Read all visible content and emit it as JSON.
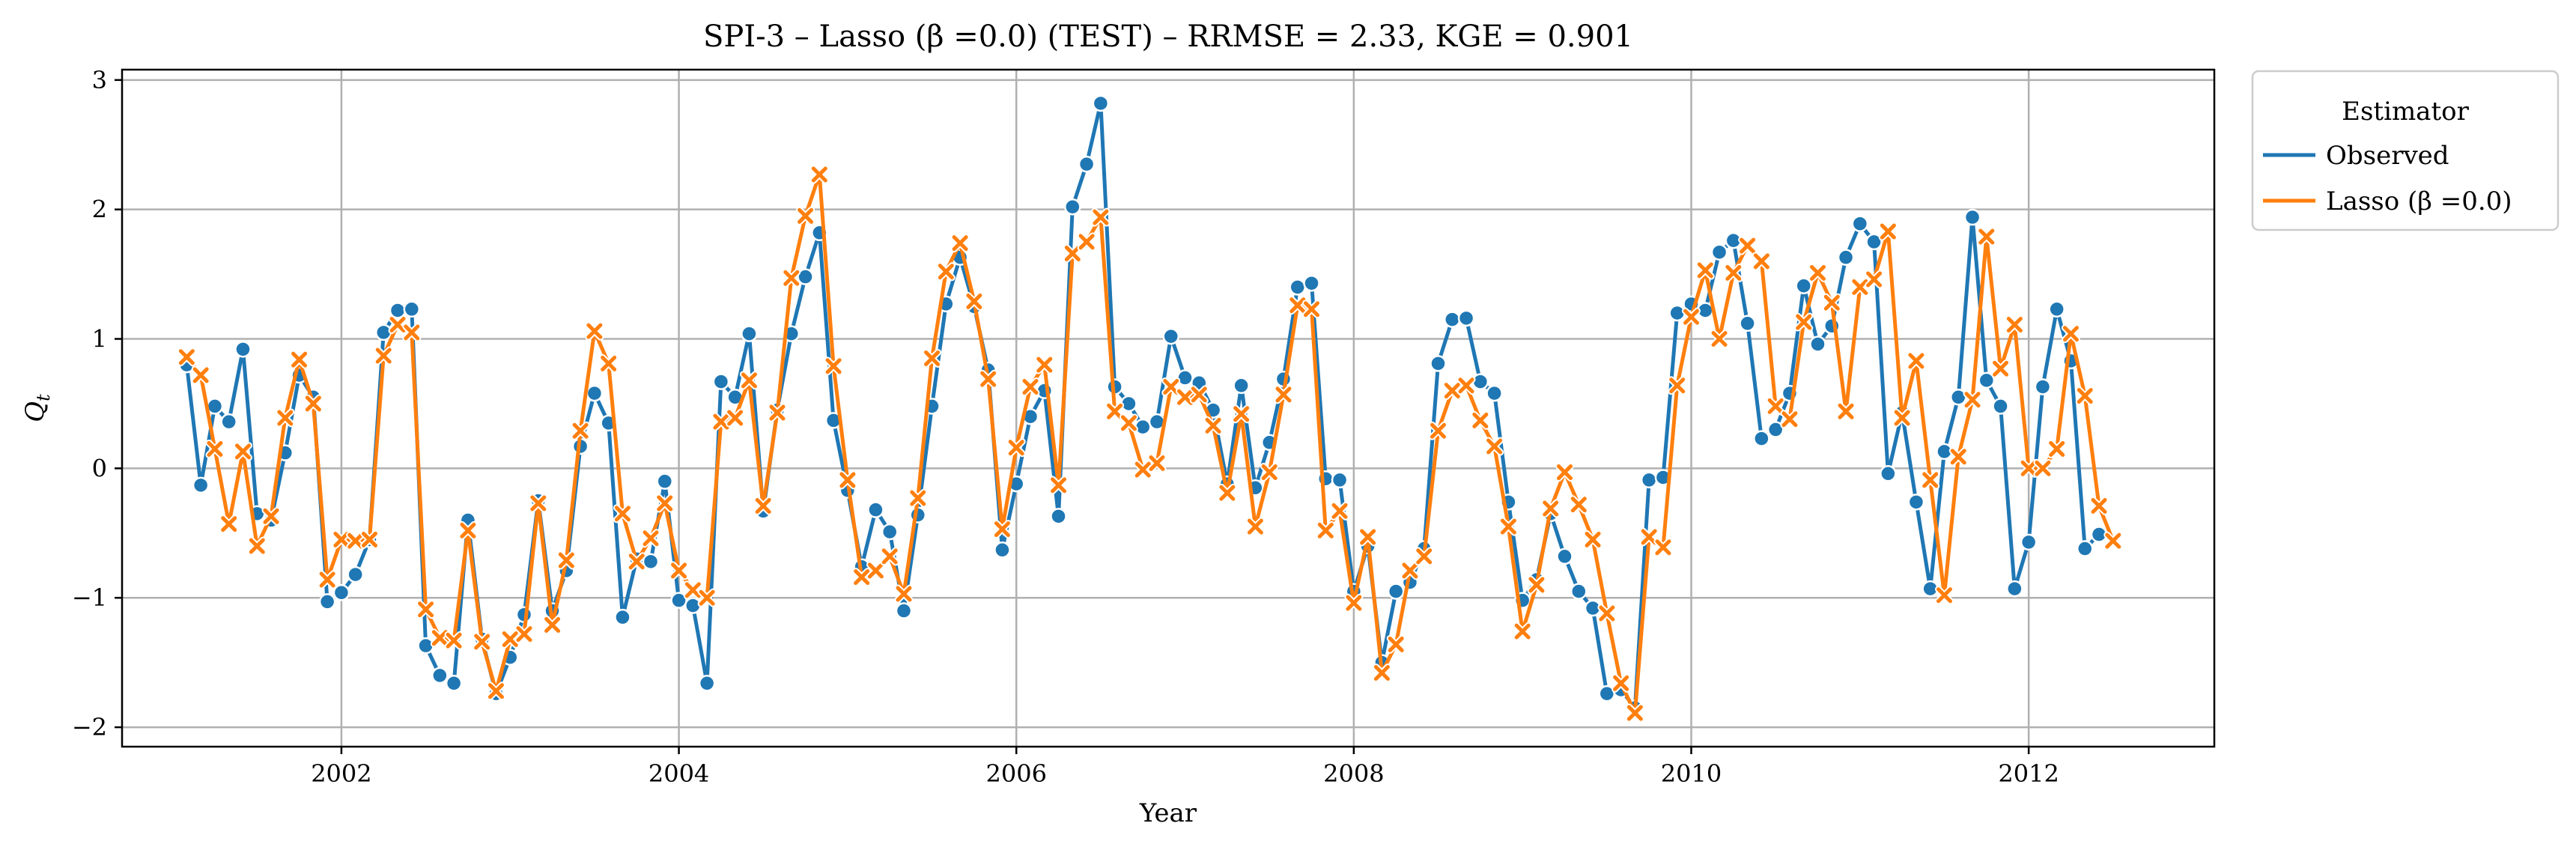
{
  "chart_data": {
    "type": "line",
    "title": "SPI-3 – Lasso (β =0.0) (TEST) – RRMSE = 2.33, KGE = 0.901",
    "xlabel": "Year",
    "ylabel": "Q_t",
    "xlim": [
      2000.7,
      2013.1
    ],
    "ylim": [
      -2.15,
      3.08
    ],
    "x_ticks": [
      2002,
      2004,
      2006,
      2008,
      2010,
      2012
    ],
    "x_tick_labels": [
      "2002",
      "2004",
      "2006",
      "2008",
      "2010",
      "2012"
    ],
    "y_ticks": [
      -2,
      -1,
      0,
      1,
      2,
      3
    ],
    "y_tick_labels": [
      "−2",
      "−1",
      "0",
      "1",
      "2",
      "3"
    ],
    "grid": true,
    "legend": {
      "title": "Estimator",
      "placement": "outside-top-right"
    },
    "x_start": 2001.0833,
    "x_step": 0.083333,
    "series": [
      {
        "name": "Observed",
        "color": "#1f77b4",
        "marker": "circle",
        "values": [
          0.8,
          -0.13,
          0.48,
          0.36,
          0.92,
          -0.35,
          -0.4,
          0.12,
          0.72,
          0.55,
          -1.03,
          -0.96,
          -0.82,
          -0.55,
          1.05,
          1.22,
          1.23,
          -1.37,
          -1.6,
          -1.66,
          -0.4,
          -1.32,
          -1.74,
          -1.46,
          -1.13,
          -0.25,
          -1.1,
          -0.79,
          0.17,
          0.58,
          0.35,
          -1.15,
          -0.7,
          -0.72,
          -0.1,
          -1.02,
          -1.06,
          -1.66,
          0.67,
          0.55,
          1.04,
          -0.33,
          0.45,
          1.04,
          1.48,
          1.82,
          0.37,
          -0.17,
          -0.76,
          -0.32,
          -0.49,
          -1.1,
          -0.36,
          0.48,
          1.27,
          1.63,
          1.25,
          0.76,
          -0.63,
          -0.12,
          0.4,
          0.6,
          -0.37,
          2.02,
          2.35,
          2.82,
          0.63,
          0.5,
          0.32,
          0.36,
          1.02,
          0.7,
          0.66,
          0.45,
          -0.12,
          0.64,
          -0.15,
          0.2,
          0.69,
          1.4,
          1.43,
          -0.08,
          -0.09,
          -0.95,
          -0.6,
          -1.5,
          -0.95,
          -0.88,
          -0.62,
          0.81,
          1.15,
          1.16,
          0.67,
          0.58,
          -0.26,
          -1.02,
          -0.86,
          -0.35,
          -0.68,
          -0.95,
          -1.08,
          -1.74,
          -1.71,
          -1.85,
          -0.09,
          -0.07,
          1.2,
          1.27,
          1.22,
          1.67,
          1.76,
          1.12,
          0.23,
          0.3,
          0.58,
          1.41,
          0.96,
          1.1,
          1.63,
          1.89,
          1.75,
          -0.04,
          0.43,
          -0.26,
          -0.93,
          0.13,
          0.55,
          1.94,
          0.68,
          0.48,
          -0.93,
          -0.57,
          0.63,
          1.23,
          0.83,
          -0.62,
          -0.51
        ]
      },
      {
        "name": "Lasso (β =0.0)",
        "color": "#ff7f0e",
        "marker": "x",
        "values": [
          0.86,
          0.72,
          0.15,
          -0.43,
          0.13,
          -0.6,
          -0.37,
          0.39,
          0.84,
          0.5,
          -0.86,
          -0.55,
          -0.56,
          -0.55,
          0.87,
          1.11,
          1.05,
          -1.09,
          -1.31,
          -1.33,
          -0.48,
          -1.34,
          -1.72,
          -1.32,
          -1.28,
          -0.27,
          -1.21,
          -0.71,
          0.29,
          1.06,
          0.81,
          -0.35,
          -0.72,
          -0.54,
          -0.27,
          -0.79,
          -0.94,
          -1.0,
          0.36,
          0.39,
          0.68,
          -0.29,
          0.43,
          1.47,
          1.95,
          2.27,
          0.79,
          -0.09,
          -0.84,
          -0.79,
          -0.68,
          -0.97,
          -0.23,
          0.85,
          1.52,
          1.74,
          1.29,
          0.69,
          -0.47,
          0.16,
          0.63,
          0.8,
          -0.13,
          1.66,
          1.75,
          1.94,
          0.44,
          0.35,
          -0.01,
          0.04,
          0.63,
          0.55,
          0.57,
          0.33,
          -0.19,
          0.42,
          -0.45,
          -0.03,
          0.57,
          1.26,
          1.23,
          -0.48,
          -0.33,
          -1.04,
          -0.53,
          -1.58,
          -1.36,
          -0.79,
          -0.68,
          0.29,
          0.6,
          0.64,
          0.37,
          0.17,
          -0.45,
          -1.26,
          -0.9,
          -0.31,
          -0.03,
          -0.28,
          -0.55,
          -1.12,
          -1.66,
          -1.89,
          -0.53,
          -0.61,
          0.64,
          1.17,
          1.53,
          1.0,
          1.51,
          1.72,
          1.6,
          0.48,
          0.38,
          1.13,
          1.51,
          1.28,
          0.44,
          1.4,
          1.46,
          1.83,
          0.39,
          0.83,
          -0.09,
          -0.98,
          0.09,
          0.53,
          1.79,
          0.77,
          1.11,
          0.0,
          0.0,
          0.15,
          1.04,
          0.56,
          -0.29,
          -0.56
        ]
      }
    ]
  }
}
